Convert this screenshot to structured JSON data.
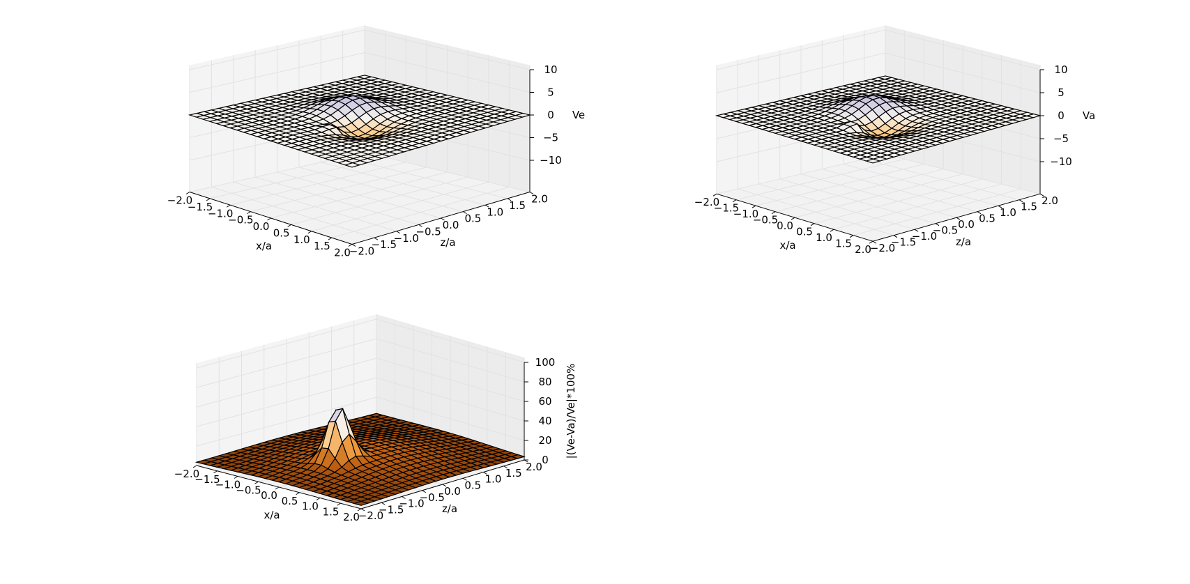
{
  "chart_data": [
    {
      "type": "surface3d",
      "title": "",
      "xlabel": "x/a",
      "ylabel": "z/a",
      "zlabel": "Ve",
      "x_ticks": [
        "−2.0",
        "−1.5",
        "−1.0",
        "−0.5",
        "0.0",
        "0.5",
        "1.0",
        "1.5",
        "2.0"
      ],
      "y_ticks": [
        "−2.0",
        "−1.5",
        "−1.0",
        "−0.5",
        "0.0",
        "0.5",
        "1.0",
        "1.5",
        "2.0"
      ],
      "z_ticks": [
        "−10",
        "−5",
        "0",
        "5",
        "10"
      ],
      "xlim": [
        -2,
        2
      ],
      "ylim": [
        -2,
        2
      ],
      "zlim": [
        -10,
        10
      ],
      "colormap": "PuOr",
      "grid": true
    },
    {
      "type": "surface3d",
      "title": "",
      "xlabel": "x/a",
      "ylabel": "z/a",
      "zlabel": "Va",
      "x_ticks": [
        "−2.0",
        "−1.5",
        "−1.0",
        "−0.5",
        "0.0",
        "0.5",
        "1.0",
        "1.5",
        "2.0"
      ],
      "y_ticks": [
        "−2.0",
        "−1.5",
        "−1.0",
        "−0.5",
        "0.0",
        "0.5",
        "1.0",
        "1.5",
        "2.0"
      ],
      "z_ticks": [
        "−10",
        "−5",
        "0",
        "5",
        "10"
      ],
      "xlim": [
        -2,
        2
      ],
      "ylim": [
        -2,
        2
      ],
      "zlim": [
        -10,
        10
      ],
      "colormap": "PuOr",
      "grid": true
    },
    {
      "type": "surface3d",
      "title": "",
      "xlabel": "x/a",
      "ylabel": "z/a",
      "zlabel": "|(Ve-Va)/Ve|*100%",
      "x_ticks": [
        "−2.0",
        "−1.5",
        "−1.0",
        "−0.5",
        "0.0",
        "0.5",
        "1.0",
        "1.5",
        "2.0"
      ],
      "y_ticks": [
        "−2.0",
        "−1.5",
        "−1.0",
        "−0.5",
        "0.0",
        "0.5",
        "1.0",
        "1.5",
        "2.0"
      ],
      "z_ticks": [
        "0",
        "20",
        "40",
        "60",
        "80",
        "100"
      ],
      "xlim": [
        -2,
        2
      ],
      "ylim": [
        -2,
        2
      ],
      "zlim": [
        0,
        100
      ],
      "colormap": "PuOr",
      "grid": true
    }
  ]
}
